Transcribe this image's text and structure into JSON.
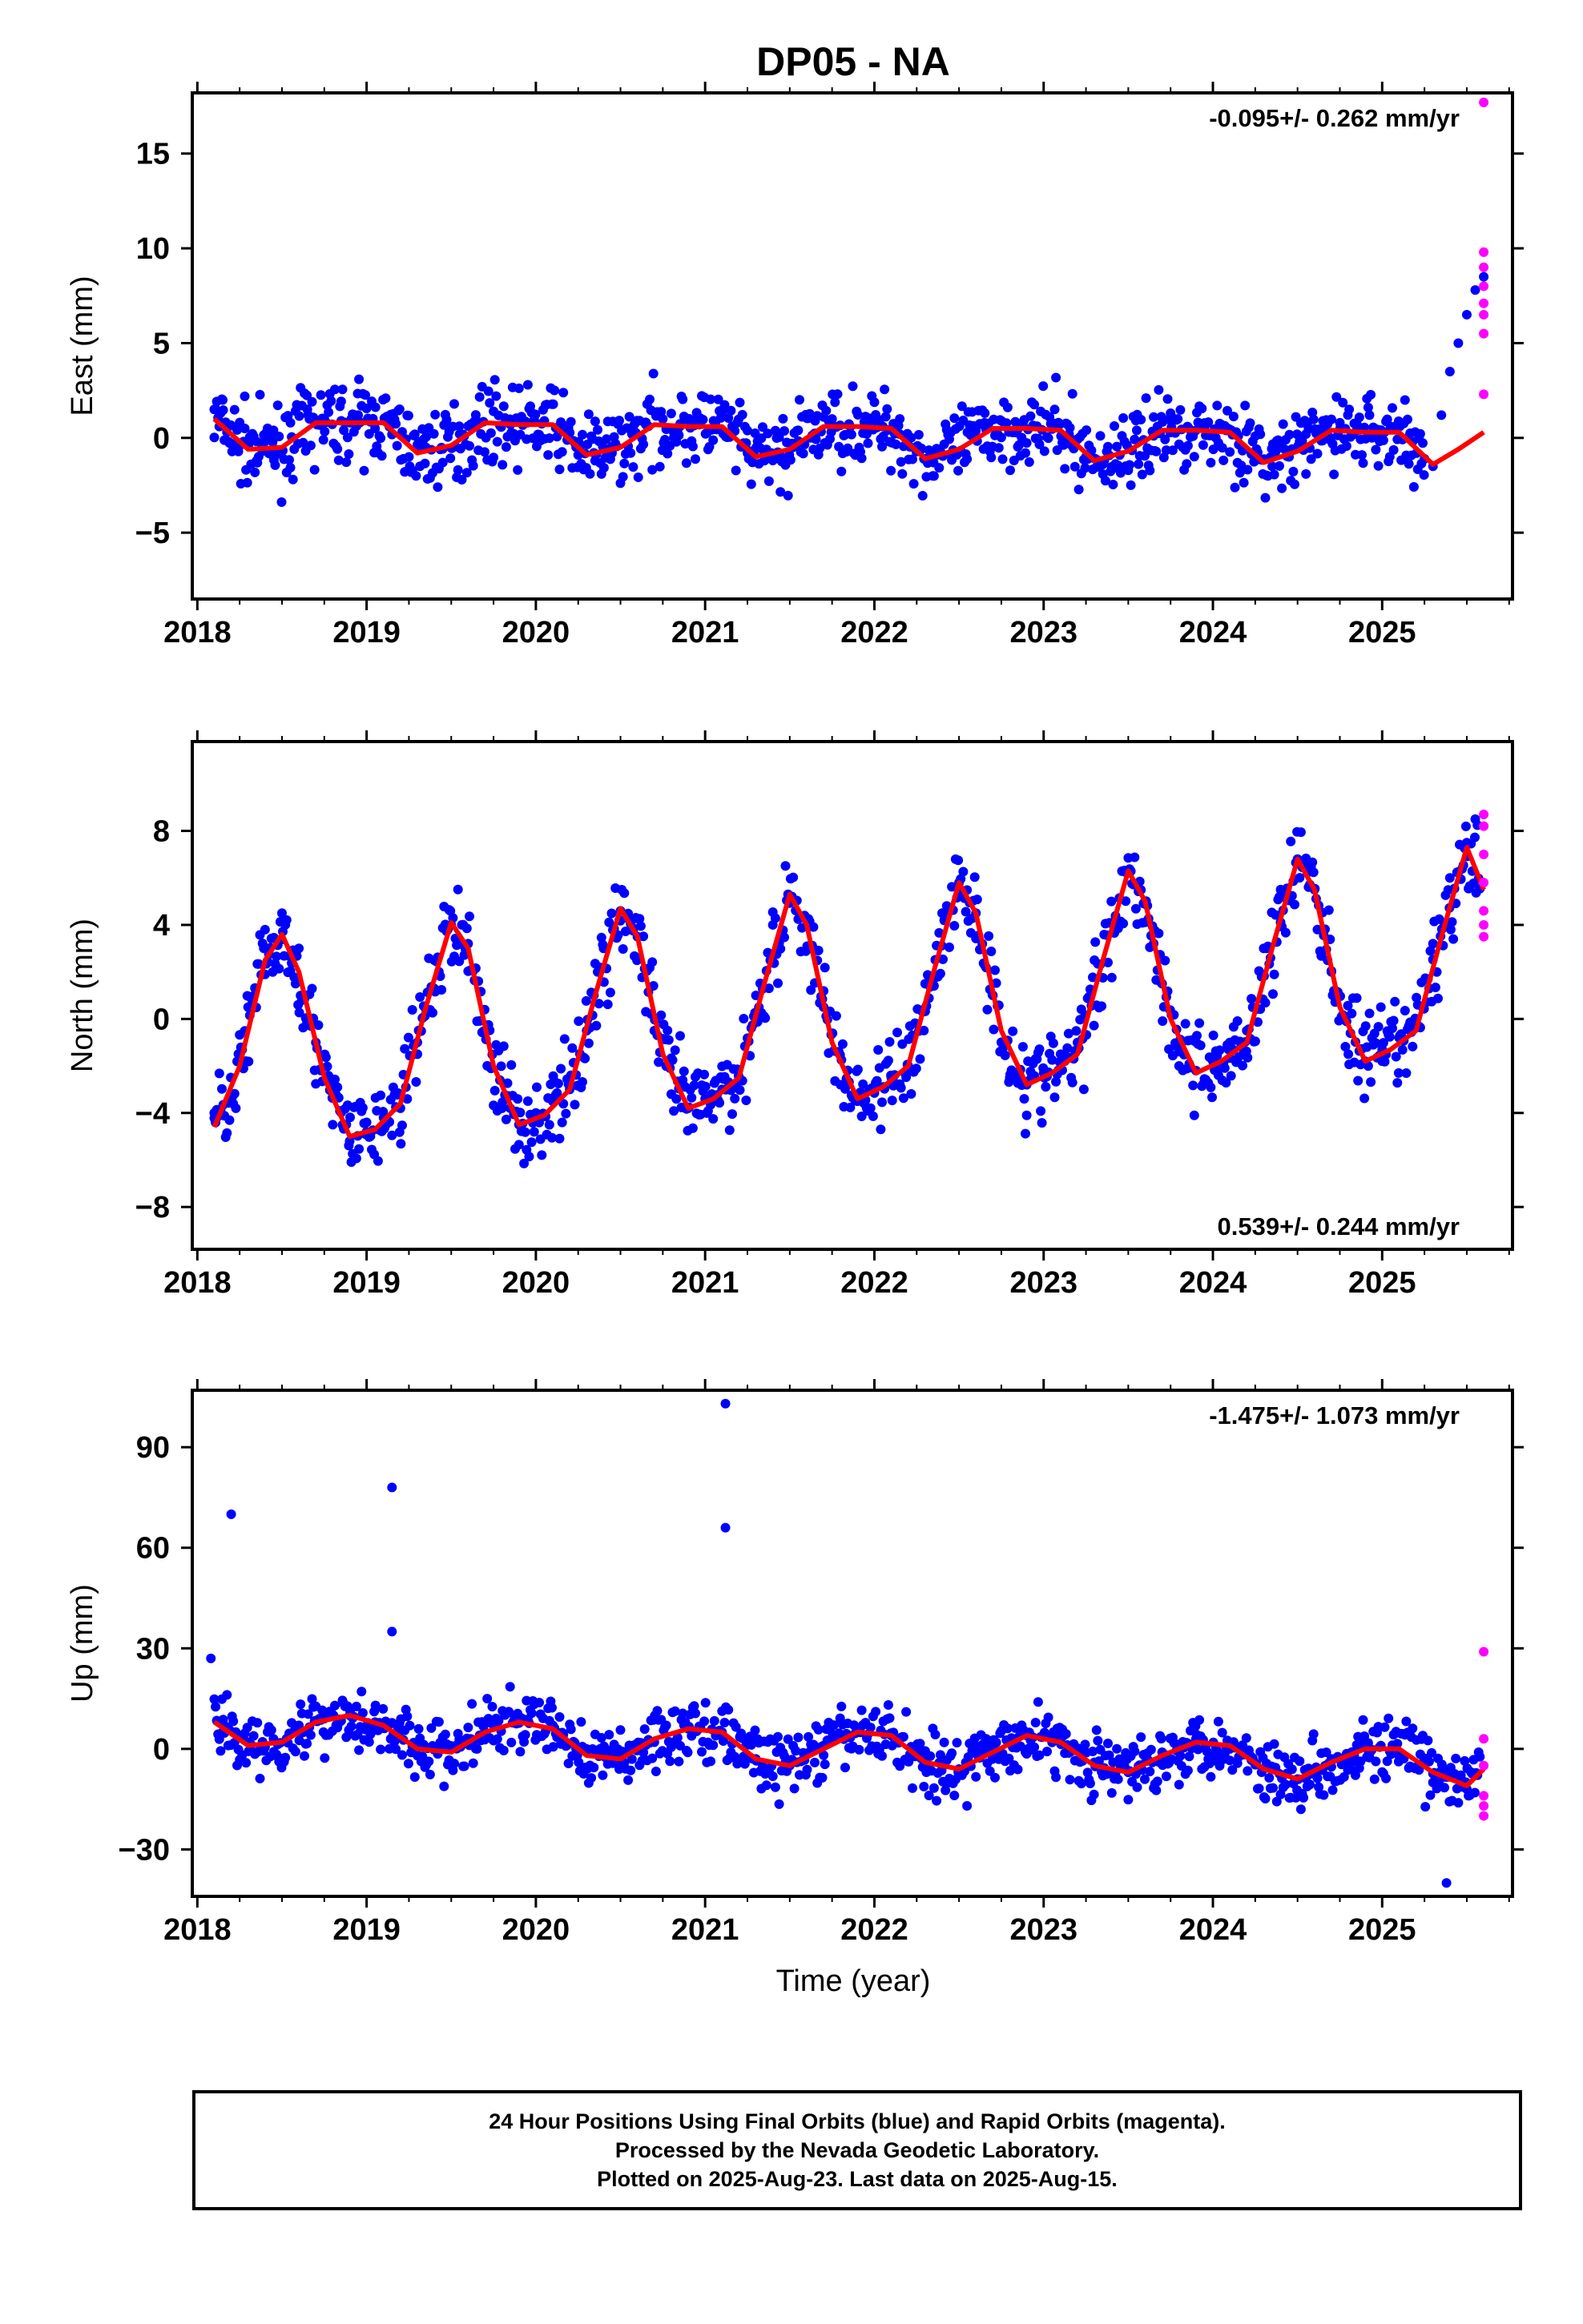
{
  "title": "DP05 - NA",
  "xlabel": "Time (year)",
  "footer": {
    "line1": "24 Hour Positions Using Final Orbits (blue) and Rapid Orbits (magenta).",
    "line2": "Processed by the Nevada Geodetic Laboratory.",
    "line3": "Plotted on 2025-Aug-23. Last data on 2025-Aug-15."
  },
  "colors": {
    "final": "#0000ff",
    "rapid": "#ff00ff",
    "fit": "#ff0000"
  },
  "chart_data": [
    {
      "type": "scatter",
      "component": "east",
      "ylabel": "East (mm)",
      "rate_label": "-0.095+/- 0.262 mm/yr",
      "rate_position": "top-right",
      "xlim": [
        2017.97,
        2025.77
      ],
      "ylim": [
        -8.5,
        18.2
      ],
      "xticks": [
        2018,
        2019,
        2020,
        2021,
        2022,
        2023,
        2024,
        2025
      ],
      "yticks": [
        -5,
        0,
        5,
        10,
        15
      ],
      "grid": false,
      "series": [
        {
          "role": "final-orbits",
          "color": "#0000ff",
          "x": [
            2018.1,
            2018.15,
            2018.2,
            2018.28,
            2018.35,
            2018.45,
            2018.55,
            2018.65,
            2018.75,
            2018.85,
            2018.95,
            2019.05,
            2019.15,
            2019.25,
            2019.35,
            2019.45,
            2019.55,
            2019.65,
            2019.75,
            2019.85,
            2019.95,
            2020.05,
            2020.15,
            2020.25,
            2020.35,
            2020.45,
            2020.55,
            2020.65,
            2020.75,
            2020.85,
            2020.95,
            2021.05,
            2021.15,
            2021.25,
            2021.35,
            2021.45,
            2021.55,
            2021.65,
            2021.75,
            2021.85,
            2021.95,
            2022.05,
            2022.15,
            2022.25,
            2022.35,
            2022.45,
            2022.55,
            2022.65,
            2022.75,
            2022.85,
            2022.95,
            2023.05,
            2023.15,
            2023.25,
            2023.35,
            2023.45,
            2023.55,
            2023.65,
            2023.75,
            2023.85,
            2023.95,
            2024.05,
            2024.15,
            2024.25,
            2024.35,
            2024.45,
            2024.55,
            2024.65,
            2024.75,
            2024.85,
            2024.95,
            2025.05,
            2025.15,
            2025.25,
            2025.3,
            2025.35,
            2025.4,
            2025.45,
            2025.5,
            2025.55,
            2025.6
          ],
          "y": [
            1.5,
            2.0,
            -0.3,
            0.5,
            -1.2,
            0.4,
            0.8,
            1.5,
            1.0,
            0.9,
            1.2,
            0.5,
            0.8,
            -1.0,
            -0.5,
            -1.3,
            0.2,
            0.9,
            1.4,
            0.7,
            0.8,
            0.9,
            0.6,
            -0.9,
            -1.2,
            -0.8,
            0.5,
            0.7,
            1.0,
            0.6,
            0.8,
            0.9,
            0.3,
            -0.8,
            -1.2,
            -1.0,
            0.4,
            0.9,
            1.0,
            0.7,
            0.8,
            0.6,
            1.0,
            -0.5,
            -1.3,
            -0.9,
            0.3,
            0.8,
            0.9,
            0.5,
            0.6,
            0.8,
            0.2,
            -1.0,
            -1.4,
            -0.9,
            0.4,
            1.1,
            1.3,
            0.6,
            0.5,
            0.7,
            0.1,
            -1.2,
            -1.5,
            -1.0,
            0.2,
            0.9,
            0.8,
            0.4,
            0.5,
            0.6,
            0.0,
            -1.1,
            -1.5,
            1.2,
            3.5,
            5.0,
            6.5,
            7.8,
            8.5
          ]
        },
        {
          "role": "rapid-orbits",
          "color": "#ff00ff",
          "x": [
            2025.6,
            2025.6,
            2025.6,
            2025.6,
            2025.6,
            2025.6,
            2025.6,
            2025.6
          ],
          "y": [
            17.7,
            9.8,
            9.0,
            8.0,
            7.1,
            6.5,
            5.5,
            2.3
          ]
        },
        {
          "role": "seasonal-fit",
          "color": "#ff0000",
          "x": [
            2018.1,
            2018.3,
            2018.5,
            2018.7,
            2018.9,
            2019.1,
            2019.3,
            2019.5,
            2019.7,
            2019.9,
            2020.1,
            2020.3,
            2020.5,
            2020.7,
            2020.9,
            2021.1,
            2021.3,
            2021.5,
            2021.7,
            2021.9,
            2022.1,
            2022.3,
            2022.5,
            2022.7,
            2022.9,
            2023.1,
            2023.3,
            2023.5,
            2023.7,
            2023.9,
            2024.1,
            2024.3,
            2024.5,
            2024.7,
            2024.9,
            2025.1,
            2025.3,
            2025.45,
            2025.6
          ],
          "y": [
            1.0,
            -0.6,
            -0.5,
            0.8,
            0.8,
            0.8,
            -0.8,
            -0.4,
            0.8,
            0.7,
            0.7,
            -0.9,
            -0.5,
            0.7,
            0.6,
            0.6,
            -1.0,
            -0.6,
            0.6,
            0.6,
            0.5,
            -1.1,
            -0.6,
            0.5,
            0.5,
            0.4,
            -1.2,
            -0.7,
            0.4,
            0.4,
            0.3,
            -1.3,
            -0.7,
            0.4,
            0.3,
            0.3,
            -1.4,
            -0.6,
            0.3
          ]
        }
      ]
    },
    {
      "type": "scatter",
      "component": "north",
      "ylabel": "North (mm)",
      "rate_label": "0.539+/- 0.244 mm/yr",
      "rate_position": "bottom-right",
      "xlim": [
        2017.97,
        2025.77
      ],
      "ylim": [
        -9.8,
        11.8
      ],
      "xticks": [
        2018,
        2019,
        2020,
        2021,
        2022,
        2023,
        2024,
        2025
      ],
      "yticks": [
        -8,
        -4,
        0,
        4,
        8
      ],
      "grid": false,
      "series": [
        {
          "role": "final-orbits",
          "color": "#0000ff",
          "x": [
            2018.1,
            2018.2,
            2018.3,
            2018.4,
            2018.5,
            2018.6,
            2018.7,
            2018.8,
            2018.9,
            2019.0,
            2019.1,
            2019.2,
            2019.3,
            2019.4,
            2019.5,
            2019.6,
            2019.7,
            2019.8,
            2019.9,
            2020.0,
            2020.1,
            2020.2,
            2020.3,
            2020.4,
            2020.5,
            2020.6,
            2020.7,
            2020.8,
            2020.9,
            2021.0,
            2021.1,
            2021.2,
            2021.3,
            2021.4,
            2021.5,
            2021.6,
            2021.7,
            2021.8,
            2021.9,
            2022.0,
            2022.1,
            2022.2,
            2022.3,
            2022.4,
            2022.5,
            2022.6,
            2022.7,
            2022.8,
            2022.9,
            2023.0,
            2023.1,
            2023.2,
            2023.3,
            2023.4,
            2023.5,
            2023.6,
            2023.7,
            2023.8,
            2023.9,
            2024.0,
            2024.1,
            2024.2,
            2024.3,
            2024.4,
            2024.5,
            2024.6,
            2024.7,
            2024.8,
            2024.9,
            2025.0,
            2025.1,
            2025.2,
            2025.3,
            2025.4,
            2025.5,
            2025.55
          ],
          "y": [
            -4.0,
            -3.5,
            0.5,
            3.8,
            4.5,
            3.0,
            -1.0,
            -4.5,
            -5.2,
            -4.8,
            -4.2,
            -3.8,
            -1.5,
            2.5,
            4.0,
            3.2,
            -0.5,
            -3.8,
            -4.5,
            -4.0,
            -3.5,
            -3.0,
            -0.5,
            3.0,
            4.6,
            3.5,
            -0.5,
            -3.2,
            -3.8,
            -3.4,
            -3.0,
            -2.5,
            1.0,
            4.0,
            5.2,
            4.2,
            0.5,
            -2.8,
            -3.5,
            -3.0,
            -2.5,
            -2.0,
            1.5,
            4.5,
            5.8,
            4.5,
            1.0,
            -2.5,
            -2.8,
            -2.3,
            -1.5,
            -1.0,
            2.5,
            5.0,
            6.3,
            5.0,
            1.5,
            -2.0,
            -2.2,
            -1.8,
            -1.0,
            -0.5,
            3.0,
            5.5,
            6.8,
            5.5,
            2.0,
            -1.5,
            -1.8,
            -1.3,
            -0.8,
            -0.3,
            3.2,
            6.0,
            7.5,
            8.5
          ]
        },
        {
          "role": "rapid-orbits",
          "color": "#ff00ff",
          "x": [
            2025.6,
            2025.6,
            2025.6,
            2025.6,
            2025.6,
            2025.6,
            2025.6
          ],
          "y": [
            8.7,
            8.2,
            7.0,
            5.8,
            4.6,
            4.0,
            3.5
          ]
        },
        {
          "role": "seasonal-fit",
          "color": "#ff0000",
          "x": [
            2018.1,
            2018.25,
            2018.4,
            2018.5,
            2018.6,
            2018.75,
            2018.9,
            2019.05,
            2019.2,
            2019.35,
            2019.5,
            2019.6,
            2019.75,
            2019.9,
            2020.05,
            2020.2,
            2020.35,
            2020.5,
            2020.6,
            2020.75,
            2020.9,
            2021.05,
            2021.2,
            2021.35,
            2021.5,
            2021.6,
            2021.75,
            2021.9,
            2022.05,
            2022.2,
            2022.35,
            2022.5,
            2022.6,
            2022.75,
            2022.9,
            2023.05,
            2023.2,
            2023.35,
            2023.5,
            2023.6,
            2023.75,
            2023.9,
            2024.05,
            2024.2,
            2024.35,
            2024.5,
            2024.6,
            2024.75,
            2024.9,
            2025.05,
            2025.2,
            2025.35,
            2025.5,
            2025.6
          ],
          "y": [
            -4.6,
            -2.0,
            2.5,
            3.6,
            2.0,
            -2.5,
            -5.0,
            -4.7,
            -3.6,
            0.5,
            4.1,
            3.0,
            -2.0,
            -4.5,
            -4.1,
            -3.0,
            1.0,
            4.7,
            3.5,
            -1.5,
            -3.8,
            -3.4,
            -2.5,
            1.5,
            5.3,
            4.0,
            -1.0,
            -3.4,
            -2.9,
            -2.0,
            2.0,
            5.8,
            4.5,
            -0.5,
            -2.8,
            -2.3,
            -1.5,
            2.5,
            6.3,
            5.0,
            0.0,
            -2.3,
            -1.8,
            -1.0,
            3.0,
            6.8,
            5.5,
            0.5,
            -1.8,
            -1.3,
            -0.5,
            3.5,
            7.3,
            5.5
          ]
        }
      ]
    },
    {
      "type": "scatter",
      "component": "up",
      "ylabel": "Up (mm)",
      "rate_label": "-1.475+/- 1.073 mm/yr",
      "rate_position": "top-right",
      "xlim": [
        2017.97,
        2025.77
      ],
      "ylim": [
        -44,
        107
      ],
      "xticks": [
        2018,
        2019,
        2020,
        2021,
        2022,
        2023,
        2024,
        2025
      ],
      "yticks": [
        -30,
        0,
        30,
        60,
        90
      ],
      "grid": false,
      "series": [
        {
          "role": "final-orbits",
          "color": "#0000ff",
          "x": [
            2018.08,
            2018.2,
            2019.15,
            2019.15,
            2021.12,
            2021.12,
            2018.15,
            2018.3,
            2018.45,
            2018.6,
            2018.75,
            2018.9,
            2019.05,
            2019.3,
            2019.5,
            2019.7,
            2019.9,
            2020.1,
            2020.3,
            2020.5,
            2020.7,
            2020.9,
            2021.1,
            2021.3,
            2021.5,
            2021.7,
            2021.9,
            2022.1,
            2022.3,
            2022.5,
            2022.7,
            2022.9,
            2023.1,
            2023.3,
            2023.5,
            2023.7,
            2023.9,
            2024.1,
            2024.3,
            2024.5,
            2024.7,
            2024.9,
            2025.1,
            2025.3,
            2025.38,
            2025.5
          ],
          "y": [
            27,
            70,
            78,
            35,
            103,
            66,
            5,
            2,
            3,
            7,
            9,
            10,
            8,
            -2,
            0,
            5,
            8,
            7,
            0,
            -3,
            2,
            6,
            5,
            -3,
            -5,
            1,
            5,
            4,
            -4,
            -6,
            0,
            4,
            2,
            -4,
            -7,
            -1,
            3,
            0,
            -6,
            -9,
            -3,
            1,
            -2,
            -10,
            -40,
            -12
          ]
        },
        {
          "role": "rapid-orbits",
          "color": "#ff00ff",
          "x": [
            2025.6,
            2025.6,
            2025.6,
            2025.6,
            2025.6,
            2025.6
          ],
          "y": [
            29,
            3,
            -5,
            -14,
            -17,
            -20
          ]
        },
        {
          "role": "seasonal-fit",
          "color": "#ff0000",
          "x": [
            2018.1,
            2018.3,
            2018.5,
            2018.7,
            2018.9,
            2019.1,
            2019.3,
            2019.5,
            2019.7,
            2019.9,
            2020.1,
            2020.3,
            2020.5,
            2020.7,
            2020.9,
            2021.1,
            2021.3,
            2021.5,
            2021.7,
            2021.9,
            2022.1,
            2022.3,
            2022.5,
            2022.7,
            2022.9,
            2023.1,
            2023.3,
            2023.5,
            2023.7,
            2023.9,
            2024.1,
            2024.3,
            2024.5,
            2024.7,
            2024.9,
            2025.1,
            2025.3,
            2025.5,
            2025.6
          ],
          "y": [
            8,
            1,
            2,
            8,
            10,
            7,
            0,
            -1,
            5,
            8,
            6,
            -2,
            -3,
            3,
            6,
            5,
            -3,
            -5,
            0,
            5,
            4,
            -4,
            -6,
            -1,
            4,
            2,
            -5,
            -7,
            -2,
            2,
            1,
            -6,
            -9,
            -4,
            0,
            0,
            -7,
            -11,
            -6
          ]
        }
      ]
    }
  ]
}
